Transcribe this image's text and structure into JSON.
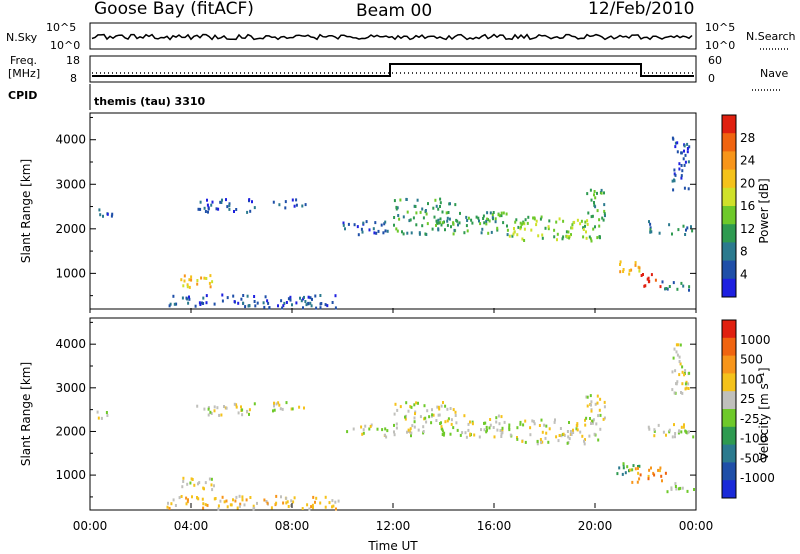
{
  "header": {
    "station": "Goose Bay (fitACF)",
    "beam": "Beam 00",
    "date": "12/Feb/2010"
  },
  "strips": {
    "nsky_label": "N.Sky",
    "nsky_ticks": [
      "10^5",
      "10^0"
    ],
    "nsearch_label": "N.Search",
    "nsearch_ticks": [
      "10^5",
      "10^0"
    ],
    "freq_label_line1": "Freq.",
    "freq_label_line2": "[MHz]",
    "freq_ticks": [
      "18",
      "8"
    ],
    "nave_label": "Nave",
    "nave_ticks": [
      "60",
      "0"
    ],
    "cpid_label": "CPID",
    "cpid_value": "themis (tau) 3310"
  },
  "chart_data": [
    {
      "type": "heatmap",
      "name": "power",
      "ylabel": "Slant Range [km]",
      "yticks": [
        "1000",
        "2000",
        "3000",
        "4000"
      ],
      "ylim": [
        200,
        4600
      ],
      "xlim_hours": [
        0,
        24
      ],
      "colorbar": {
        "label": "Power [dB]",
        "tick_labels": [
          "4",
          "8",
          "12",
          "16",
          "20",
          "24",
          "28"
        ],
        "colors": [
          "#1e20e0",
          "#1f4fa8",
          "#2b7a8e",
          "#2e9a50",
          "#6ec92a",
          "#cfe12a",
          "#f4c21b",
          "#f7951a",
          "#f06410",
          "#e02010"
        ]
      },
      "echo_regions": [
        {
          "t0": 0.1,
          "t1": 0.9,
          "r0": 2300,
          "r1": 2500,
          "level": 1
        },
        {
          "t0": 3.5,
          "t1": 4.9,
          "r0": 700,
          "r1": 1000,
          "level": 6
        },
        {
          "t0": 4.2,
          "t1": 6.5,
          "r0": 2400,
          "r1": 2700,
          "level": 1
        },
        {
          "t0": 3.0,
          "t1": 10.0,
          "r0": 250,
          "r1": 550,
          "level": 1
        },
        {
          "t0": 7.0,
          "t1": 8.5,
          "r0": 2500,
          "r1": 2700,
          "level": 1
        },
        {
          "t0": 10.0,
          "t1": 11.8,
          "r0": 1900,
          "r1": 2200,
          "level": 1
        },
        {
          "t0": 12.0,
          "t1": 14.5,
          "r0": 1900,
          "r1": 2700,
          "level": 3
        },
        {
          "t0": 14.5,
          "t1": 16.5,
          "r0": 1900,
          "r1": 2400,
          "level": 3
        },
        {
          "t0": 16.5,
          "t1": 20.2,
          "r0": 1750,
          "r1": 2300,
          "level": 4
        },
        {
          "t0": 19.6,
          "t1": 20.4,
          "r0": 2200,
          "r1": 2900,
          "level": 3
        },
        {
          "t0": 20.8,
          "t1": 21.8,
          "r0": 1000,
          "r1": 1300,
          "level": 6
        },
        {
          "t0": 21.8,
          "t1": 22.6,
          "r0": 700,
          "r1": 1050,
          "level": 9
        },
        {
          "t0": 22.0,
          "t1": 23.9,
          "r0": 1900,
          "r1": 2200,
          "level": 2
        },
        {
          "t0": 22.5,
          "t1": 23.9,
          "r0": 650,
          "r1": 850,
          "level": 2
        },
        {
          "t0": 23.0,
          "t1": 23.7,
          "r0": 2900,
          "r1": 4100,
          "level": 1
        }
      ]
    },
    {
      "type": "heatmap",
      "name": "velocity",
      "ylabel": "Slant Range [km]",
      "yticks": [
        "1000",
        "2000",
        "3000",
        "4000"
      ],
      "ylim": [
        200,
        4600
      ],
      "xlabel": "Time UT",
      "xticks": [
        "00:00",
        "04:00",
        "08:00",
        "12:00",
        "16:00",
        "20:00",
        "00:00"
      ],
      "xlim_hours": [
        0,
        24
      ],
      "colorbar": {
        "label": "Velocity [m s⁻¹]",
        "tick_labels": [
          "1000",
          "500",
          "100",
          "25",
          "-25",
          "-100",
          "-500",
          "-1000"
        ],
        "colors": [
          "#1a2ad8",
          "#1f4fa8",
          "#2b7a8e",
          "#2e9a50",
          "#6ec92a",
          "#c0c0bc",
          "#f4c21b",
          "#f7951a",
          "#f06410",
          "#e02010"
        ]
      },
      "echo_regions": [
        {
          "t0": 0.1,
          "t1": 0.9,
          "r0": 2300,
          "r1": 2500,
          "level": 5
        },
        {
          "t0": 3.5,
          "t1": 4.9,
          "r0": 700,
          "r1": 1000,
          "level": 5
        },
        {
          "t0": 4.2,
          "t1": 6.5,
          "r0": 2400,
          "r1": 2700,
          "level": 5
        },
        {
          "t0": 3.0,
          "t1": 10.0,
          "r0": 250,
          "r1": 550,
          "level": 6
        },
        {
          "t0": 7.0,
          "t1": 8.5,
          "r0": 2500,
          "r1": 2700,
          "level": 5
        },
        {
          "t0": 10.0,
          "t1": 11.8,
          "r0": 1900,
          "r1": 2200,
          "level": 5
        },
        {
          "t0": 12.0,
          "t1": 14.5,
          "r0": 1900,
          "r1": 2700,
          "level": 5
        },
        {
          "t0": 14.5,
          "t1": 16.5,
          "r0": 1900,
          "r1": 2400,
          "level": 5
        },
        {
          "t0": 16.5,
          "t1": 20.2,
          "r0": 1750,
          "r1": 2300,
          "level": 5
        },
        {
          "t0": 19.6,
          "t1": 20.4,
          "r0": 2200,
          "r1": 2900,
          "level": 5
        },
        {
          "t0": 20.8,
          "t1": 21.8,
          "r0": 1000,
          "r1": 1300,
          "level": 3
        },
        {
          "t0": 21.3,
          "t1": 22.9,
          "r0": 850,
          "r1": 1200,
          "level": 7
        },
        {
          "t0": 22.0,
          "t1": 23.9,
          "r0": 1900,
          "r1": 2200,
          "level": 5
        },
        {
          "t0": 22.5,
          "t1": 23.9,
          "r0": 650,
          "r1": 850,
          "level": 5
        },
        {
          "t0": 23.0,
          "t1": 23.7,
          "r0": 2900,
          "r1": 4100,
          "level": 5
        }
      ]
    }
  ]
}
